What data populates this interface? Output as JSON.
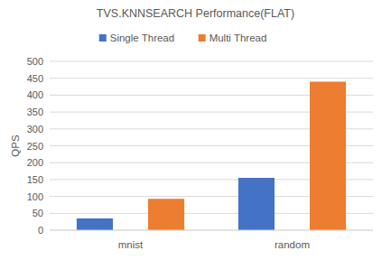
{
  "chart_data": {
    "type": "bar",
    "title": "TVS.KNNSEARCH Performance(FLAT)",
    "y_label": "QPS",
    "categories": [
      "mnist",
      "random"
    ],
    "series": [
      {
        "name": "Single Thread",
        "color": "#4472c4",
        "values": [
          35,
          155
        ]
      },
      {
        "name": "Multi Thread",
        "color": "#ed7d31",
        "values": [
          93,
          440
        ]
      }
    ],
    "ylim": [
      0,
      500
    ],
    "yticks": [
      0,
      50,
      100,
      150,
      200,
      250,
      300,
      350,
      400,
      450,
      500
    ],
    "grid": true,
    "legend": "top"
  }
}
